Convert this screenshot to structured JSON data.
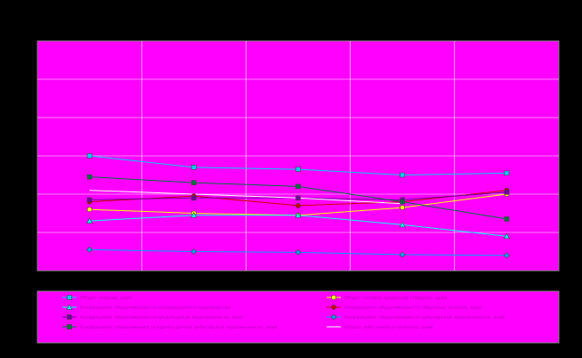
{
  "chart_data": {
    "type": "line",
    "title": "",
    "xlabel": "",
    "ylabel": "",
    "x": [
      1,
      2,
      3,
      4,
      5
    ],
    "ylim": [
      0,
      6
    ],
    "grid": true,
    "legend_position": "bottom",
    "background": "#ff00ff",
    "series": [
      {
        "name": "Оборот запасов, дней",
        "color": "#00ccff",
        "marker": "square",
        "values": [
          3.0,
          2.7,
          2.65,
          2.5,
          2.55
        ]
      },
      {
        "name": "Оборот готовой продукции (товаров), дней",
        "color": "#ffff00",
        "marker": "circle",
        "values": [
          1.6,
          1.5,
          1.45,
          1.65,
          2.0
        ]
      },
      {
        "name": "Коэффициент оборачиваемости незавершенного производства",
        "color": "#00ffff",
        "marker": "triangle",
        "values": [
          1.3,
          1.45,
          1.45,
          1.2,
          0.9
        ]
      },
      {
        "name": "Коэффициент оборачиваемости оборотных активов, дней",
        "color": "#cc0000",
        "marker": "circle",
        "values": [
          1.8,
          1.95,
          1.7,
          1.8,
          2.1
        ]
      },
      {
        "name": "Коэффициент оборачиваемости кредиторской задолженности, дней",
        "color": "#7000a0",
        "marker": "square",
        "values": [
          1.85,
          1.9,
          1.9,
          1.85,
          2.05
        ]
      },
      {
        "name": "Коэффициент оборачиваемости дебиторской задолженности, дней",
        "color": "#00a0ff",
        "marker": "diamond",
        "values": [
          0.55,
          0.5,
          0.48,
          0.42,
          0.4
        ]
      },
      {
        "name": "Коэффициент оборачиваемости краткосрочной дебиторской задолженности, дней",
        "color": "#007040",
        "marker": "square",
        "values": [
          2.45,
          2.3,
          2.2,
          1.8,
          1.35
        ]
      },
      {
        "name": "Оборот собственного капитала, дней",
        "color": "#ffffff",
        "marker": "none",
        "values": [
          2.1,
          2.0,
          1.9,
          1.75,
          null
        ]
      }
    ]
  }
}
